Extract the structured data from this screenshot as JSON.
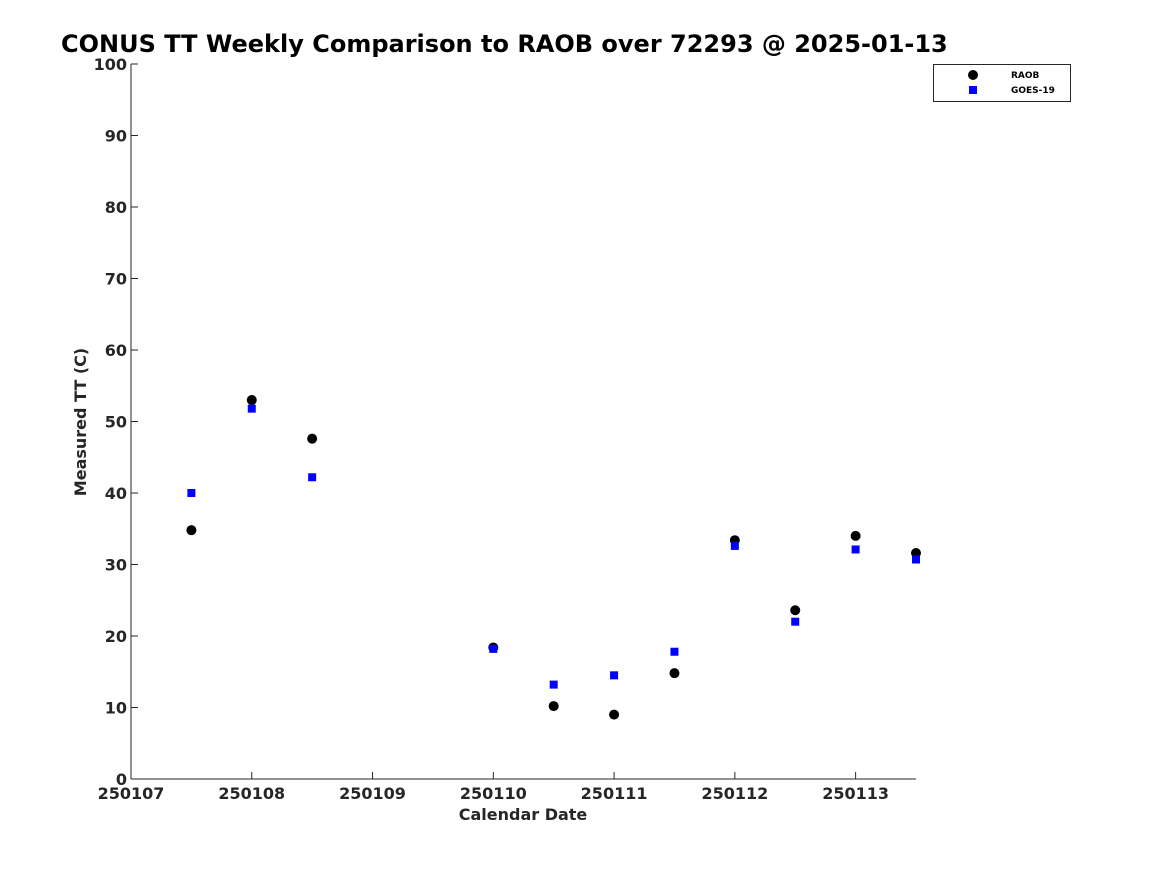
{
  "chart_data": {
    "type": "scatter",
    "title": "CONUS TT Weekly Comparison to RAOB over 72293 @ 2025-01-13",
    "xlabel": "Calendar Date",
    "ylabel": "Measured TT (C)",
    "xlim": [
      250107,
      250113.5
    ],
    "ylim": [
      0,
      100
    ],
    "xticks": [
      "250107",
      "250108",
      "250109",
      "250110",
      "250111",
      "250112",
      "250113"
    ],
    "xtick_values": [
      250107,
      250108,
      250109,
      250110,
      250111,
      250112,
      250113
    ],
    "yticks": [
      "0",
      "10",
      "20",
      "30",
      "40",
      "50",
      "60",
      "70",
      "80",
      "90",
      "100"
    ],
    "ytick_values": [
      0,
      10,
      20,
      30,
      40,
      50,
      60,
      70,
      80,
      90,
      100
    ],
    "grid": false,
    "legend_position": "top-right",
    "series": [
      {
        "name": "RAOB",
        "marker": "circle",
        "color": "#000000",
        "x": [
          250107.5,
          250108,
          250108.5,
          250110,
          250110.5,
          250111,
          250111.5,
          250112,
          250112.5,
          250113,
          250113.5
        ],
        "y": [
          34.8,
          53.0,
          47.6,
          18.4,
          10.2,
          9.0,
          14.8,
          33.4,
          23.6,
          34.0,
          31.6
        ]
      },
      {
        "name": "GOES-19",
        "marker": "square",
        "color": "#0000ff",
        "x": [
          250107.5,
          250108,
          250108.5,
          250110,
          250110.5,
          250111,
          250111.5,
          250112,
          250112.5,
          250113,
          250113.5
        ],
        "y": [
          40.0,
          51.8,
          42.2,
          18.2,
          13.2,
          14.5,
          17.8,
          32.6,
          22.0,
          32.1,
          30.7
        ]
      }
    ]
  }
}
